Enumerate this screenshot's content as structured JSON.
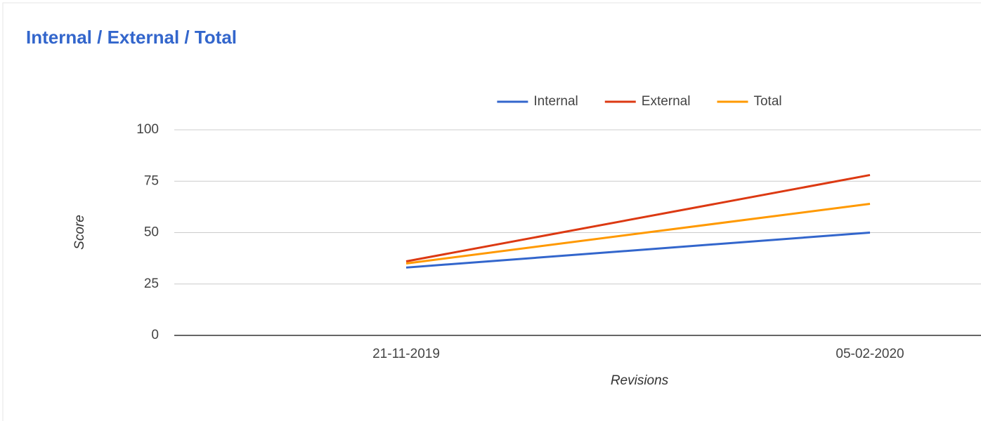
{
  "chart_data": {
    "type": "line",
    "title": "Internal / External / Total",
    "categories": [
      "21-11-2019",
      "05-02-2020"
    ],
    "series": [
      {
        "name": "Internal",
        "color": "#3366cc",
        "values": [
          33,
          50
        ]
      },
      {
        "name": "External",
        "color": "#dc3912",
        "values": [
          36,
          78
        ]
      },
      {
        "name": "Total",
        "color": "#ff9900",
        "values": [
          35,
          64
        ]
      }
    ],
    "ylim": [
      0,
      100
    ],
    "yticks": [
      0,
      25,
      50,
      75,
      100
    ],
    "grid": true,
    "y_label": "Score",
    "x_label": "Revisions",
    "legend": "top"
  }
}
